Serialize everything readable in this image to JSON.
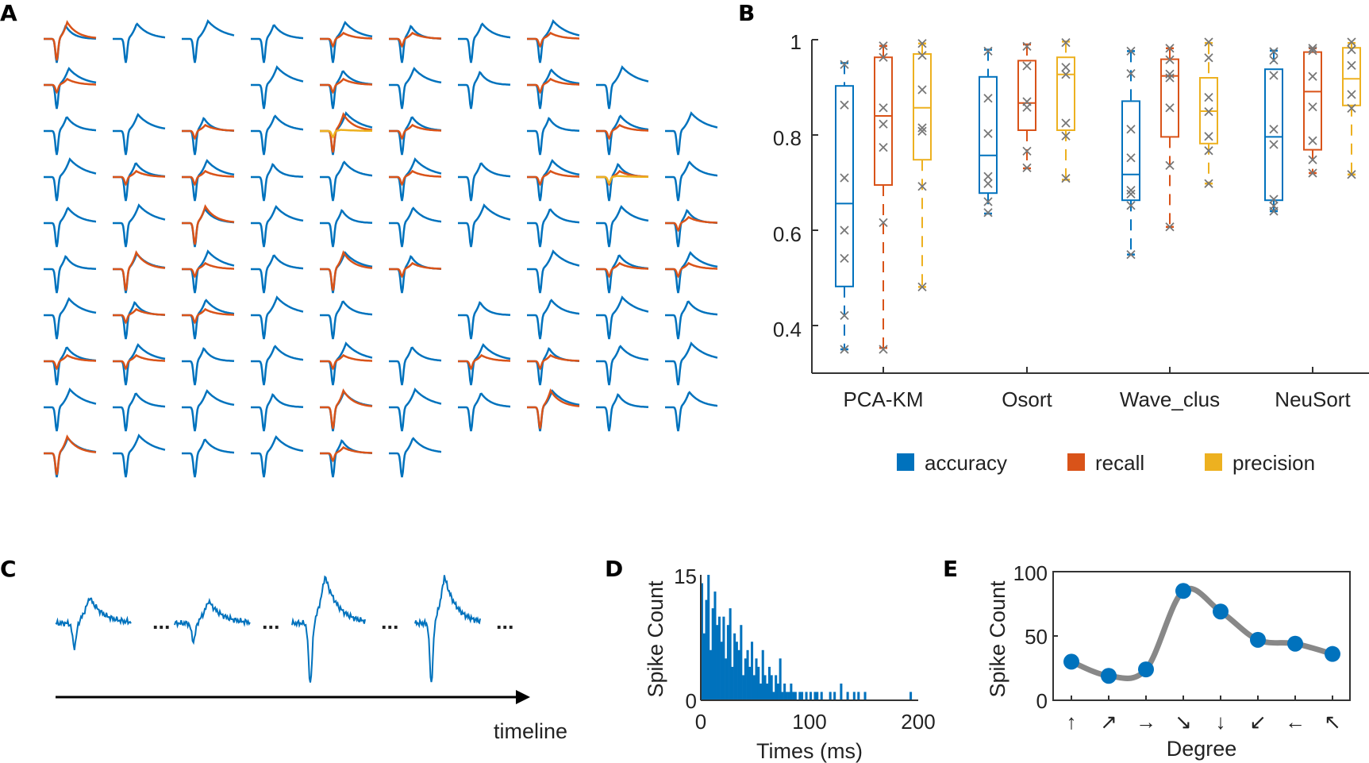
{
  "panels": {
    "a": "A",
    "b": "B",
    "c": "C",
    "d": "D",
    "e": "E"
  },
  "colors": {
    "accuracy": "#0072BD",
    "recall": "#D95319",
    "precision": "#EDB120",
    "marker": "#777777",
    "tuning_line": "#888888"
  },
  "panel_a": {
    "legend_note": "",
    "grid": [
      [
        "o",
        "b",
        "b",
        "b",
        "o",
        "o",
        "b",
        "o",
        "",
        ""
      ],
      [
        "o",
        "",
        "",
        "b",
        "o",
        "b",
        "b",
        "o",
        "b",
        ""
      ],
      [
        "b",
        "b",
        "o",
        "b",
        "y",
        "o",
        "",
        "b",
        "o",
        "b"
      ],
      [
        "b",
        "o",
        "o",
        "b",
        "b",
        "o",
        "b",
        "o",
        "y",
        "b"
      ],
      [
        "b",
        "b",
        "o",
        "b",
        "b",
        "b",
        "b",
        "b",
        "b",
        "o"
      ],
      [
        "b",
        "o",
        "o",
        "b",
        "o",
        "o",
        "",
        "b",
        "o",
        "o"
      ],
      [
        "b",
        "o",
        "o",
        "b",
        "b",
        "",
        "b",
        "b",
        "b",
        "b"
      ],
      [
        "o",
        "o",
        "b",
        "b",
        "o",
        "b",
        "o",
        "o",
        "b",
        "b"
      ],
      [
        "b",
        "b",
        "b",
        "b",
        "o",
        "b",
        "b",
        "o",
        "b",
        "b"
      ],
      [
        "o",
        "b",
        "b",
        "b",
        "o",
        "b",
        "",
        "",
        "",
        ""
      ]
    ]
  },
  "chart_data": [
    {
      "panel": "B",
      "type": "box",
      "categories": [
        "PCA-KM",
        "Osort",
        "Wave_clus",
        "NeuSort"
      ],
      "ylim": [
        0.3,
        1
      ],
      "yticks": [
        "0.4",
        "0.6",
        "0.8",
        "1"
      ],
      "ytick_values": [
        0.4,
        0.6,
        0.8,
        1
      ],
      "legend": [
        "accuracy",
        "recall",
        "precision"
      ],
      "legend_placement": "bottom",
      "series": [
        {
          "name": "accuracy",
          "boxes": [
            {
              "whisker_low": 0.35,
              "q1": 0.482,
              "median": 0.656,
              "q3": 0.903,
              "whisker_high": 0.951,
              "points": [
                0.948,
                0.863,
                0.71,
                0.6,
                0.541,
                0.421,
                0.35
              ]
            },
            {
              "whisker_low": 0.635,
              "q1": 0.678,
              "median": 0.757,
              "q3": 0.922,
              "whisker_high": 0.979,
              "points": [
                0.976,
                0.877,
                0.803,
                0.713,
                0.698,
                0.66,
                0.637
              ]
            },
            {
              "whisker_low": 0.549,
              "q1": 0.663,
              "median": 0.717,
              "q3": 0.871,
              "whisker_high": 0.976,
              "points": [
                0.976,
                0.929,
                0.812,
                0.752,
                0.684,
                0.676,
                0.652,
                0.549
              ]
            },
            {
              "whisker_low": 0.64,
              "q1": 0.663,
              "median": 0.796,
              "q3": 0.938,
              "whisker_high": 0.977,
              "points": [
                0.975,
                0.957,
                0.925,
                0.812,
                0.78,
                0.665,
                0.651,
                0.64
              ]
            }
          ]
        },
        {
          "name": "recall",
          "boxes": [
            {
              "whisker_low": 0.353,
              "q1": 0.695,
              "median": 0.84,
              "q3": 0.963,
              "whisker_high": 0.987,
              "points": [
                0.987,
                0.963,
                0.857,
                0.823,
                0.774,
                0.616,
                0.35
              ]
            },
            {
              "whisker_low": 0.73,
              "q1": 0.81,
              "median": 0.867,
              "q3": 0.956,
              "whisker_high": 0.99,
              "points": [
                0.986,
                0.945,
                0.87,
                0.858,
                0.766,
                0.731
              ]
            },
            {
              "whisker_low": 0.607,
              "q1": 0.796,
              "median": 0.924,
              "q3": 0.959,
              "whisker_high": 0.982,
              "points": [
                0.982,
                0.958,
                0.928,
                0.92,
                0.857,
                0.736,
                0.607
              ]
            },
            {
              "whisker_low": 0.72,
              "q1": 0.769,
              "median": 0.891,
              "q3": 0.974,
              "whisker_high": 0.982,
              "points": [
                0.982,
                0.977,
                0.923,
                0.859,
                0.788,
                0.748,
                0.72
              ]
            }
          ]
        },
        {
          "name": "precision",
          "boxes": [
            {
              "whisker_low": 0.481,
              "q1": 0.748,
              "median": 0.857,
              "q3": 0.97,
              "whisker_high": 0.992,
              "points": [
                0.992,
                0.967,
                0.895,
                0.815,
                0.808,
                0.692,
                0.481
              ]
            },
            {
              "whisker_low": 0.706,
              "q1": 0.81,
              "median": 0.927,
              "q3": 0.963,
              "whisker_high": 0.996,
              "points": [
                0.994,
                0.942,
                0.927,
                0.825,
                0.798,
                0.709
              ]
            },
            {
              "whisker_low": 0.698,
              "q1": 0.782,
              "median": 0.85,
              "q3": 0.92,
              "whisker_high": 0.993,
              "points": [
                0.995,
                0.962,
                0.879,
                0.849,
                0.797,
                0.767,
                0.698
              ]
            },
            {
              "whisker_low": 0.717,
              "q1": 0.862,
              "median": 0.918,
              "q3": 0.983,
              "whisker_high": 0.993,
              "points": [
                0.995,
                0.979,
                0.946,
                0.885,
                0.856,
                0.717
              ]
            }
          ]
        }
      ]
    },
    {
      "panel": "D",
      "type": "bar",
      "xlabel": "Times (ms)",
      "ylabel": "Spike Count",
      "xlim": [
        0,
        200
      ],
      "ylim": [
        0,
        15
      ],
      "xticks": [
        "0",
        "100",
        "200"
      ],
      "xtick_values": [
        0,
        100,
        200
      ],
      "yticks": [
        "0",
        "15"
      ],
      "ytick_values": [
        0,
        15
      ],
      "bin_width_ms": 2,
      "values": [
        14,
        8,
        12,
        15,
        6,
        11,
        13,
        9,
        10,
        7,
        10,
        5,
        9,
        11,
        4,
        8,
        7,
        6,
        9,
        3,
        5,
        6,
        4,
        7,
        3,
        5,
        4,
        2,
        6,
        3,
        2,
        4,
        3,
        1,
        3,
        2,
        5,
        1,
        2,
        1,
        1,
        2,
        1,
        1,
        0,
        1,
        1,
        0,
        1,
        0,
        1,
        0,
        1,
        1,
        0,
        1,
        0,
        0,
        0,
        1,
        0,
        1,
        0,
        0,
        2,
        0,
        0,
        1,
        0,
        0,
        1,
        0,
        1,
        0,
        0,
        1,
        0,
        0,
        0,
        0,
        0,
        0,
        0,
        0,
        0,
        0,
        0,
        0,
        0,
        0,
        0,
        0,
        0,
        0,
        0,
        0,
        1,
        0,
        0,
        0
      ]
    },
    {
      "panel": "E",
      "type": "line",
      "xlabel": "Degree",
      "ylabel": "Spike Count",
      "ylim": [
        0,
        100
      ],
      "yticks": [
        "0",
        "50",
        "100"
      ],
      "ytick_values": [
        0,
        50,
        100
      ],
      "categories": [
        "↑",
        "↗",
        "→",
        "↘",
        "↓",
        "↙",
        "←",
        "↖"
      ],
      "values": [
        30,
        19,
        24,
        85,
        69,
        47,
        44,
        36
      ]
    }
  ],
  "panel_c": {
    "ellipsis": "...",
    "axis_label": "timeline"
  }
}
